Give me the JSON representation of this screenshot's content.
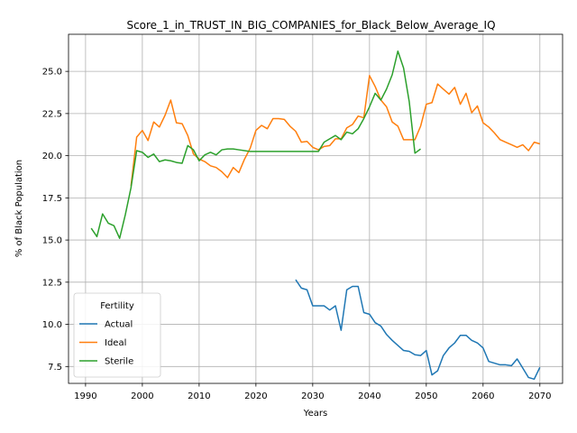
{
  "chart_data": {
    "type": "line",
    "title": "Score_1_in_TRUST_IN_BIG_COMPANIES_for_Black_Below_Average_IQ",
    "xlabel": "Years",
    "ylabel": "% of Black Population",
    "xlim": [
      1987,
      2074
    ],
    "ylim": [
      6.5,
      27.2
    ],
    "xticks": [
      1990,
      2000,
      2010,
      2020,
      2030,
      2040,
      2050,
      2060,
      2070
    ],
    "yticks": [
      7.5,
      10.0,
      12.5,
      15.0,
      17.5,
      20.0,
      22.5,
      25.0
    ],
    "ytick_labels": [
      "7.5",
      "10.0",
      "12.5",
      "15.0",
      "17.5",
      "20.0",
      "22.5",
      "25.0"
    ],
    "grid": true,
    "legend": {
      "title": "Fertility",
      "placement": "lower-left"
    },
    "series": [
      {
        "name": "Actual",
        "color": "#1f77b4",
        "x": [
          2027,
          2028,
          2029,
          2030,
          2031,
          2032,
          2033,
          2034,
          2035,
          2036,
          2037,
          2038,
          2039,
          2040,
          2041,
          2042,
          2043,
          2044,
          2045,
          2046,
          2047,
          2048,
          2049,
          2050,
          2051,
          2052,
          2053,
          2054,
          2055,
          2056,
          2057,
          2058,
          2059,
          2060,
          2061,
          2062,
          2063,
          2064,
          2065,
          2066,
          2067,
          2068,
          2069,
          2070
        ],
        "y": [
          12.65,
          12.15,
          12.05,
          11.1,
          11.1,
          11.1,
          10.85,
          11.1,
          9.65,
          12.05,
          12.25,
          12.25,
          10.7,
          10.6,
          10.1,
          9.9,
          9.4,
          9.05,
          8.75,
          8.45,
          8.4,
          8.2,
          8.15,
          8.45,
          7.0,
          7.25,
          8.15,
          8.6,
          8.9,
          9.35,
          9.35,
          9.05,
          8.9,
          8.6,
          7.8,
          7.7,
          7.6,
          7.6,
          7.55,
          7.95,
          7.4,
          6.85,
          6.75,
          7.45
        ]
      },
      {
        "name": "Ideal",
        "color": "#ff7f0e",
        "x": [
          1998,
          1999,
          2000,
          2001,
          2002,
          2003,
          2004,
          2005,
          2006,
          2007,
          2008,
          2009,
          2010,
          2011,
          2012,
          2013,
          2014,
          2015,
          2016,
          2017,
          2018,
          2019,
          2020,
          2021,
          2022,
          2023,
          2024,
          2025,
          2026,
          2027,
          2028,
          2029,
          2030,
          2031,
          2032,
          2033,
          2034,
          2035,
          2036,
          2037,
          2038,
          2039,
          2040,
          2041,
          2042,
          2043,
          2044,
          2045,
          2046,
          2047,
          2048,
          2049,
          2050,
          2051,
          2052,
          2053,
          2054,
          2055,
          2056,
          2057,
          2058,
          2059,
          2060,
          2061,
          2062,
          2063,
          2064,
          2065,
          2066,
          2067,
          2068,
          2069,
          2070
        ],
        "y": [
          18.2,
          21.1,
          21.5,
          20.9,
          22.0,
          21.7,
          22.4,
          23.3,
          21.95,
          21.9,
          21.2,
          20.1,
          19.8,
          19.65,
          19.4,
          19.3,
          19.05,
          18.7,
          19.3,
          19.0,
          19.8,
          20.45,
          21.5,
          21.8,
          21.6,
          22.2,
          22.2,
          22.15,
          21.75,
          21.45,
          20.8,
          20.85,
          20.5,
          20.35,
          20.55,
          20.6,
          21.0,
          21.0,
          21.65,
          21.85,
          22.35,
          22.25,
          24.75,
          24.1,
          23.3,
          22.9,
          22.0,
          21.75,
          20.95,
          20.95,
          20.95,
          21.75,
          23.05,
          23.15,
          24.25,
          23.95,
          23.65,
          24.05,
          23.05,
          23.7,
          22.55,
          22.95,
          21.95,
          21.7,
          21.35,
          20.95,
          20.8,
          20.65,
          20.5,
          20.65,
          20.3,
          20.8,
          20.7
        ]
      },
      {
        "name": "Sterile",
        "color": "#2ca02c",
        "x": [
          1991,
          1992,
          1993,
          1994,
          1995,
          1996,
          1997,
          1998,
          1999,
          2000,
          2001,
          2002,
          2003,
          2004,
          2005,
          2006,
          2007,
          2008,
          2009,
          2010,
          2011,
          2012,
          2013,
          2014,
          2015,
          2016,
          2017,
          2018,
          2019,
          2020,
          2021,
          2022,
          2023,
          2024,
          2025,
          2026,
          2027,
          2028,
          2029,
          2030,
          2031,
          2032,
          2033,
          2034,
          2035,
          2036,
          2037,
          2038,
          2039,
          2040,
          2041,
          2042,
          2043,
          2044,
          2045,
          2046,
          2047,
          2048,
          2049
        ],
        "y": [
          15.7,
          15.2,
          16.55,
          16.0,
          15.85,
          15.1,
          16.5,
          18.1,
          20.3,
          20.2,
          19.9,
          20.1,
          19.65,
          19.75,
          19.7,
          19.6,
          19.55,
          20.6,
          20.35,
          19.7,
          20.05,
          20.2,
          20.05,
          20.35,
          20.4,
          20.4,
          20.35,
          20.3,
          20.25,
          20.25,
          20.25,
          20.25,
          20.25,
          20.25,
          20.25,
          20.25,
          20.25,
          20.25,
          20.25,
          20.25,
          20.25,
          20.8,
          21.0,
          21.2,
          20.95,
          21.4,
          21.3,
          21.6,
          22.2,
          22.9,
          23.7,
          23.3,
          23.95,
          24.8,
          26.2,
          25.2,
          23.2,
          20.15,
          20.4
        ]
      }
    ]
  }
}
